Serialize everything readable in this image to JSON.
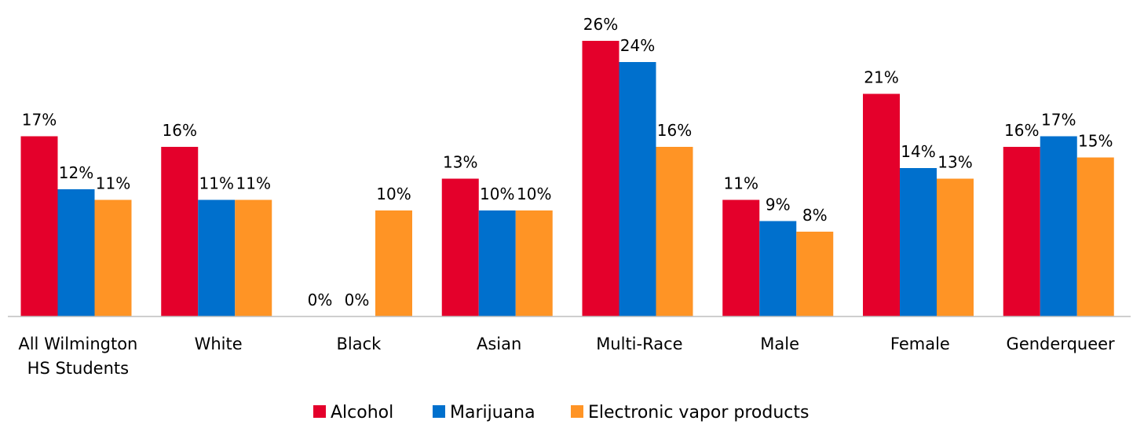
{
  "chart_data": {
    "type": "bar",
    "title": "",
    "xlabel": "",
    "ylabel": "",
    "ylim": [
      0,
      30
    ],
    "grid": false,
    "legend_position": "bottom",
    "categories": [
      [
        "All Wilmington",
        "HS Students"
      ],
      [
        "White"
      ],
      [
        "Black"
      ],
      [
        "Asian"
      ],
      [
        "Multi-Race"
      ],
      [
        "Male"
      ],
      [
        "Female"
      ],
      [
        "Genderqueer"
      ]
    ],
    "series": [
      {
        "name": "Alcohol",
        "color": "#E4002B",
        "values": [
          17,
          16,
          0,
          13,
          26,
          11,
          21,
          16
        ],
        "labels": [
          "17%",
          "16%",
          "0%",
          "13%",
          "26%",
          "11%",
          "21%",
          "16%"
        ]
      },
      {
        "name": "Marijuana",
        "color": "#0070CD",
        "values": [
          12,
          11,
          0,
          10,
          24,
          9,
          14,
          17
        ],
        "labels": [
          "12%",
          "11%",
          "0%",
          "10%",
          "24%",
          "9%",
          "14%",
          "17%"
        ]
      },
      {
        "name": "Electronic vapor products",
        "color": "#FF9425",
        "values": [
          11,
          11,
          10,
          10,
          16,
          8,
          13,
          15
        ],
        "labels": [
          "11%",
          "11%",
          "10%",
          "10%",
          "16%",
          "8%",
          "13%",
          "15%"
        ]
      }
    ]
  },
  "colors": {
    "axis": "#BFBFBF",
    "text": "#000000"
  }
}
